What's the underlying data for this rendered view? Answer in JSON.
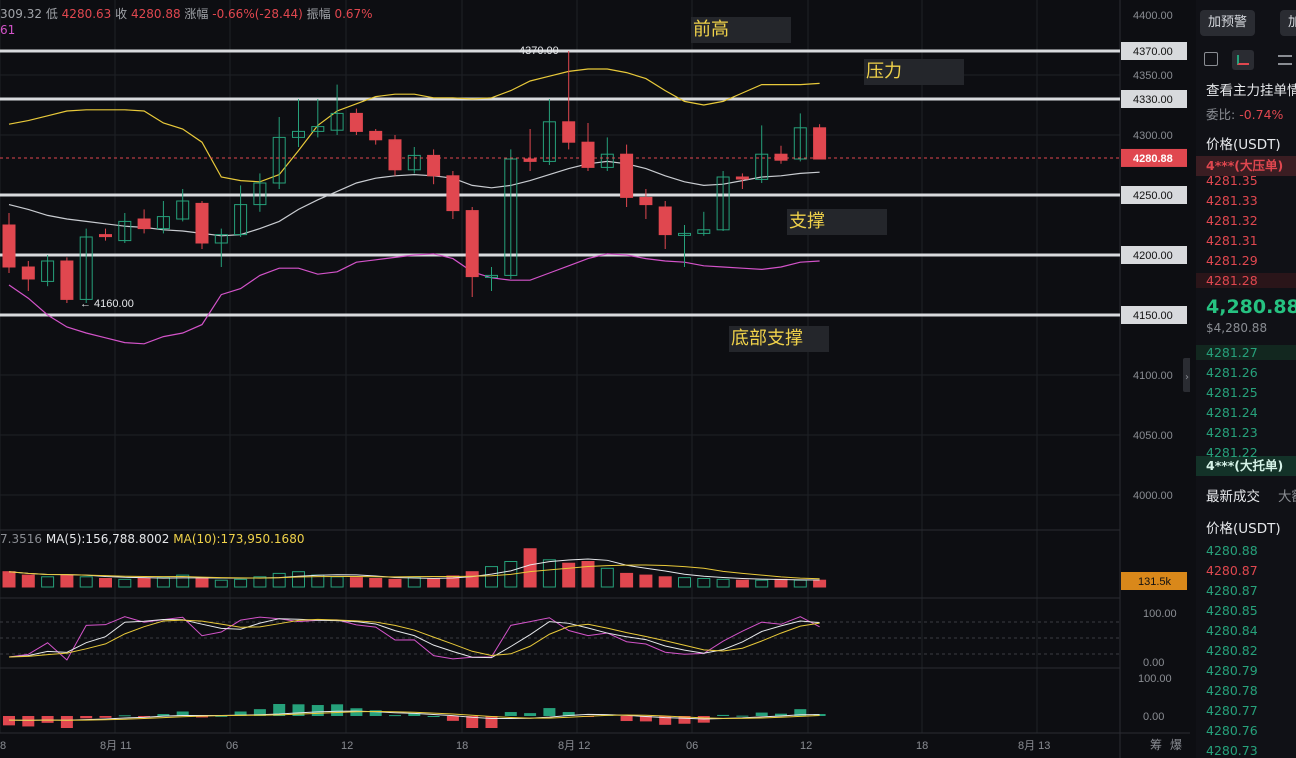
{
  "header": {
    "high_partial": "309.32",
    "low_label": "低",
    "low_value": "4280.63",
    "close_label": "收",
    "close_value": "4280.88",
    "change_label": "涨幅",
    "change_value": "-0.66%(-28.44)",
    "amp_label": "振幅",
    "amp_value": "0.67%",
    "sub_indicator": "61"
  },
  "volume_legend": {
    "partial": "7.3516",
    "ma5": "MA(5):156,788.8002",
    "ma10": "MA(10):173,950.1680"
  },
  "price_axis": [
    "4400.00",
    "4350.00",
    "4300.00",
    "4250.00",
    "4200.00",
    "4150.00",
    "4100.00",
    "4050.00",
    "4000.00"
  ],
  "price_tags": {
    "resistance_top": "4370.00",
    "resistance": "4330.00",
    "current": "4280.88",
    "support": "4250.00",
    "support2": "4200.00",
    "bottom": "4150.00",
    "volume": "131.5k"
  },
  "chart_labels": {
    "high_marker": "4370.00",
    "low_marker": "← 4160.00"
  },
  "annotations": {
    "prev_high": "前高",
    "resistance": "压力",
    "support": "支撑",
    "bottom_support": "底部支撑"
  },
  "indicator_axis": {
    "kdj_top": "100.00",
    "kdj_bottom": "0.00",
    "macd_top": "100.00",
    "macd_zero": "0.00"
  },
  "time_axis": [
    "8",
    "8月 11",
    "06",
    "12",
    "18",
    "8月 12",
    "06",
    "12",
    "18",
    "8月 13"
  ],
  "time_axis_right": [
    "筹",
    "爆"
  ],
  "chart_data": {
    "type": "candlestick",
    "y_range": [
      3980,
      4410
    ],
    "candles": [
      [
        4225,
        4190,
        4235,
        4185
      ],
      [
        4190,
        4180,
        4195,
        4170
      ],
      [
        4178,
        4195,
        4200,
        4174
      ],
      [
        4195,
        4163,
        4198,
        4160
      ],
      [
        4163,
        4215,
        4222,
        4160
      ],
      [
        4217,
        4216,
        4222,
        4212
      ],
      [
        4212,
        4228,
        4235,
        4210
      ],
      [
        4230,
        4222,
        4238,
        4218
      ],
      [
        4222,
        4232,
        4245,
        4218
      ],
      [
        4230,
        4245,
        4255,
        4228
      ],
      [
        4243,
        4210,
        4245,
        4205
      ],
      [
        4210,
        4217,
        4222,
        4190
      ],
      [
        4217,
        4242,
        4258,
        4215
      ],
      [
        4242,
        4260,
        4268,
        4236
      ],
      [
        4260,
        4298,
        4315,
        4255
      ],
      [
        4298,
        4303,
        4330,
        4290
      ],
      [
        4303,
        4307,
        4330,
        4298
      ],
      [
        4304,
        4318,
        4342,
        4300
      ],
      [
        4318,
        4303,
        4322,
        4300
      ],
      [
        4303,
        4296,
        4305,
        4292
      ],
      [
        4296,
        4271,
        4300,
        4266
      ],
      [
        4271,
        4283,
        4290,
        4268
      ],
      [
        4283,
        4266,
        4288,
        4259
      ],
      [
        4266,
        4237,
        4270,
        4230
      ],
      [
        4237,
        4182,
        4240,
        4165
      ],
      [
        4182,
        4183,
        4190,
        4170
      ],
      [
        4183,
        4280,
        4288,
        4180
      ],
      [
        4280,
        4278,
        4305,
        4270
      ],
      [
        4278,
        4311,
        4330,
        4275
      ],
      [
        4311,
        4294,
        4370,
        4288
      ],
      [
        4294,
        4273,
        4310,
        4270
      ],
      [
        4273,
        4284,
        4298,
        4270
      ],
      [
        4284,
        4248,
        4292,
        4240
      ],
      [
        4248,
        4242,
        4255,
        4230
      ],
      [
        4240,
        4217,
        4245,
        4205
      ],
      [
        4217,
        4218,
        4225,
        4190
      ],
      [
        4218,
        4221,
        4236,
        4216
      ],
      [
        4221,
        4265,
        4270,
        4220
      ],
      [
        4265,
        4264,
        4268,
        4255
      ],
      [
        4263,
        4284,
        4308,
        4260
      ],
      [
        4284,
        4279,
        4291,
        4276
      ],
      [
        4280,
        4306,
        4318,
        4278
      ],
      [
        4306,
        4280,
        4309,
        4280
      ]
    ],
    "volumes": [
      18,
      14,
      12,
      14,
      12,
      10,
      9,
      10,
      11,
      14,
      10,
      8,
      9,
      12,
      16,
      18,
      14,
      12,
      11,
      10,
      9,
      11,
      10,
      13,
      18,
      24,
      30,
      45,
      32,
      28,
      30,
      22,
      16,
      14,
      12,
      11,
      10,
      9,
      8,
      8,
      9,
      8,
      8
    ],
    "boll_upper": [
      4309,
      4312,
      4316,
      4320,
      4321,
      4321,
      4321,
      4320,
      4310,
      4305,
      4294,
      4265,
      4262,
      4261,
      4267,
      4287,
      4308,
      4320,
      4326,
      4332,
      4334,
      4334,
      4331,
      4331,
      4330,
      4331,
      4337,
      4345,
      4349,
      4353,
      4355,
      4355,
      4352,
      4347,
      4337,
      4328,
      4325,
      4328,
      4335,
      4342,
      4342,
      4342,
      4343
    ],
    "boll_mid": [
      4242,
      4238,
      4233,
      4230,
      4228,
      4226,
      4224,
      4223,
      4221,
      4220,
      4218,
      4216,
      4217,
      4222,
      4228,
      4238,
      4246,
      4253,
      4260,
      4264,
      4266,
      4267,
      4266,
      4264,
      4258,
      4256,
      4258,
      4262,
      4267,
      4272,
      4276,
      4278,
      4276,
      4272,
      4266,
      4261,
      4258,
      4259,
      4262,
      4265,
      4266,
      4268,
      4269
    ]
  },
  "right_panel": {
    "add_alert": "加预警",
    "add_alert2": "加",
    "orderbook_title": "查看主力挂单情",
    "ratio_label": "委比:",
    "ratio_value": "-0.74%",
    "price_header": "价格(USDT)",
    "ask_big": "4***(大压单)",
    "asks": [
      "4281.35",
      "4281.33",
      "4281.32",
      "4281.31",
      "4281.29",
      "4281.28"
    ],
    "last_price": "4,280.88",
    "last_price_usd": "$4,280.88",
    "bids": [
      "4281.27",
      "4281.26",
      "4281.25",
      "4281.24",
      "4281.23",
      "4281.22"
    ],
    "bid_big": "4***(大托单)",
    "trades_tab": "最新成交",
    "trades_tab2": "大额",
    "trades_header": "价格(USDT)",
    "trades": [
      {
        "price": "4280.88",
        "side": "buy"
      },
      {
        "price": "4280.87",
        "side": "sell"
      },
      {
        "price": "4280.87",
        "side": "buy"
      },
      {
        "price": "4280.85",
        "side": "buy"
      },
      {
        "price": "4280.84",
        "side": "buy"
      },
      {
        "price": "4280.82",
        "side": "buy"
      },
      {
        "price": "4280.79",
        "side": "buy"
      },
      {
        "price": "4280.78",
        "side": "buy"
      },
      {
        "price": "4280.77",
        "side": "buy"
      },
      {
        "price": "4280.76",
        "side": "buy"
      },
      {
        "price": "4280.73",
        "side": "buy"
      }
    ]
  }
}
